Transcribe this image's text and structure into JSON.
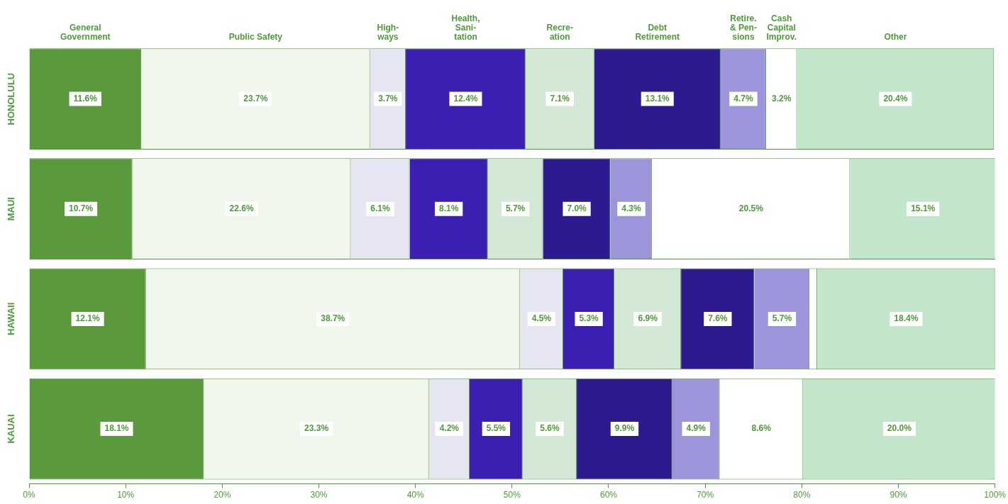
{
  "chart_data": {
    "type": "bar",
    "orientation": "horizontal",
    "stacked": true,
    "legend": "top",
    "categories": [
      "HONOLULU",
      "MAUI",
      "HAWAII",
      "KAUAI"
    ],
    "xlim": [
      0,
      100
    ],
    "xticks": [
      {
        "value": 0,
        "label": "0%"
      },
      {
        "value": 10,
        "label": "10%"
      },
      {
        "value": 20,
        "label": "20%"
      },
      {
        "value": 30,
        "label": "30%"
      },
      {
        "value": 40,
        "label": "40%"
      },
      {
        "value": 50,
        "label": "50%"
      },
      {
        "value": 60,
        "label": "60%"
      },
      {
        "value": 70,
        "label": "70%"
      },
      {
        "value": 80,
        "label": "80%"
      },
      {
        "value": 90,
        "label": "90%"
      },
      {
        "value": 100,
        "label": "100%"
      }
    ],
    "grid": false,
    "series": [
      {
        "name": "General\nGovernment",
        "color": "#5a9a3c",
        "values": [
          11.6,
          10.7,
          12.1,
          18.1
        ],
        "value_labels": [
          "11.6%",
          "10.7%",
          "12.1%",
          "18.1%"
        ]
      },
      {
        "name": "Public Safety",
        "color": "#f2f7ee",
        "values": [
          23.7,
          22.6,
          38.7,
          23.3
        ],
        "value_labels": [
          "23.7%",
          "22.6%",
          "38.7%",
          "23.3%"
        ]
      },
      {
        "name": "High-\nways",
        "color": "#e6e6f2",
        "values": [
          3.7,
          6.1,
          4.5,
          4.2
        ],
        "value_labels": [
          "3.7%",
          "6.1%",
          "4.5%",
          "4.2%"
        ]
      },
      {
        "name": "Health,\nSani-\ntation",
        "color": "#3b1fb2",
        "values": [
          12.4,
          8.1,
          5.3,
          5.5
        ],
        "value_labels": [
          "12.4%",
          "8.1%",
          "5.3%",
          "5.5%"
        ]
      },
      {
        "name": "Recre-\nation",
        "color": "#d3e9d6",
        "values": [
          7.1,
          5.7,
          6.9,
          5.6
        ],
        "value_labels": [
          "7.1%",
          "5.7%",
          "6.9%",
          "5.6%"
        ]
      },
      {
        "name": "Debt\nRetirement",
        "color": "#2c1a8e",
        "values": [
          13.1,
          7.0,
          7.6,
          9.9
        ],
        "value_labels": [
          "13.1%",
          "7.0%",
          "7.6%",
          "9.9%"
        ]
      },
      {
        "name": "Retire.\n& Pen-\nsions",
        "color": "#9d95dc",
        "values": [
          4.7,
          4.3,
          5.7,
          4.9
        ],
        "value_labels": [
          "4.7%",
          "4.3%",
          "5.7%",
          "4.9%"
        ]
      },
      {
        "name": "Cash\nCapital\nImprov.",
        "color": "#ffffff",
        "values": [
          3.2,
          20.5,
          0.8,
          8.6
        ],
        "value_labels": [
          "3.2%",
          "20.5%",
          null,
          "8.6%"
        ]
      },
      {
        "name": "Other",
        "color": "#c3e5ca",
        "values": [
          20.4,
          15.1,
          18.4,
          20.0
        ],
        "value_labels": [
          "20.4%",
          "15.1%",
          "18.4%",
          "20.0%"
        ]
      }
    ]
  }
}
